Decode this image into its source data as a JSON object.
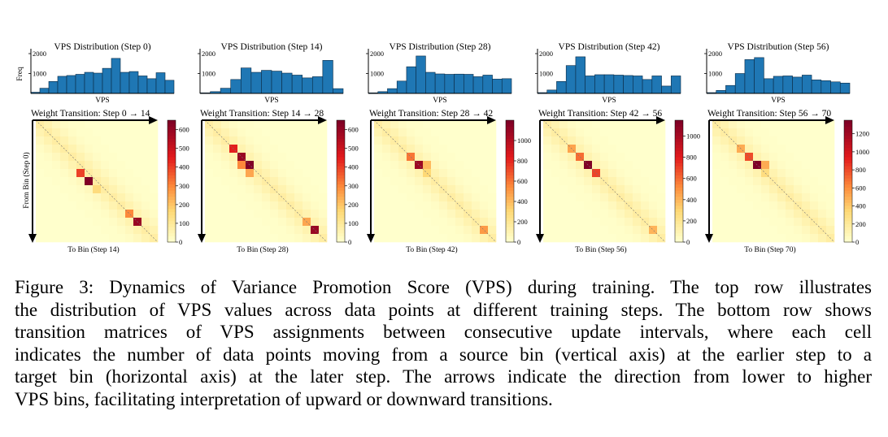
{
  "figure": {
    "colors": {
      "bar_fill": "#1f77b4",
      "bar_edge": "#0b2a44",
      "heat_low": "#ffffcc",
      "heat_mid": "#fd8d3c",
      "heat_high": "#800026",
      "diagonal": "#777777"
    },
    "hist_ylabel": "Freq",
    "heat_ylabel": "From Bin (Step 0)"
  },
  "chart_data": [
    {
      "type": "bar",
      "title": "VPS Distribution (Step 0)",
      "xlabel": "VPS",
      "ylabel": "Freq",
      "ylim": [
        0,
        2000
      ],
      "yticks": [
        1000,
        2000
      ],
      "values": [
        60,
        260,
        600,
        860,
        900,
        960,
        1060,
        1020,
        1260,
        1760,
        1060,
        1100,
        880,
        740,
        1040,
        660
      ]
    },
    {
      "type": "bar",
      "title": "VPS Distribution (Step 14)",
      "xlabel": "VPS",
      "ylabel": "",
      "ylim": [
        0,
        2000
      ],
      "yticks": [
        1000,
        2000
      ],
      "values": [
        30,
        90,
        260,
        700,
        1280,
        1060,
        1160,
        1120,
        1020,
        920,
        780,
        840,
        1660,
        240
      ]
    },
    {
      "type": "bar",
      "title": "VPS Distribution (Step 28)",
      "xlabel": "VPS",
      "ylabel": "",
      "ylim": [
        0,
        2000
      ],
      "yticks": [
        1000,
        2000
      ],
      "values": [
        30,
        90,
        240,
        620,
        1340,
        1880,
        1060,
        980,
        960,
        970,
        960,
        840,
        920,
        720,
        740
      ]
    },
    {
      "type": "bar",
      "title": "VPS Distribution (Step 42)",
      "xlabel": "VPS",
      "ylabel": "",
      "ylim": [
        0,
        2000
      ],
      "yticks": [
        1000,
        2000
      ],
      "values": [
        40,
        170,
        600,
        1400,
        1840,
        880,
        940,
        940,
        920,
        900,
        880,
        700,
        880,
        370,
        880
      ]
    },
    {
      "type": "bar",
      "title": "VPS Distribution (Step 56)",
      "xlabel": "VPS",
      "ylabel": "",
      "ylim": [
        0,
        2000
      ],
      "yticks": [
        1000,
        2000
      ],
      "values": [
        40,
        150,
        400,
        1000,
        1700,
        1800,
        740,
        860,
        880,
        820,
        920,
        680,
        640,
        580,
        520
      ]
    },
    {
      "type": "heatmap",
      "title": "Weight Transition: Step 0 → 14",
      "xlabel": "To Bin (Step 14)",
      "ylabel": "From Bin (Step 0)",
      "vmax": 650,
      "colorbar_ticks": [
        0,
        100,
        200,
        300,
        400,
        500,
        600
      ],
      "peaks": [
        {
          "row": 7,
          "col": 6,
          "value": 650
        },
        {
          "row": 6,
          "col": 5,
          "value": 400
        },
        {
          "row": 12,
          "col": 12,
          "value": 600
        },
        {
          "row": 11,
          "col": 11,
          "value": 300
        },
        {
          "row": 8,
          "col": 7,
          "value": 150
        }
      ]
    },
    {
      "type": "heatmap",
      "title": "Weight Transition: Step 14 → 28",
      "xlabel": "To Bin (Step 28)",
      "ylabel": "",
      "vmax": 650,
      "colorbar_ticks": [
        0,
        100,
        200,
        300,
        400,
        500,
        600
      ],
      "peaks": [
        {
          "row": 3,
          "col": 3,
          "value": 450
        },
        {
          "row": 4,
          "col": 4,
          "value": 600
        },
        {
          "row": 5,
          "col": 5,
          "value": 650
        },
        {
          "row": 5,
          "col": 4,
          "value": 300
        },
        {
          "row": 6,
          "col": 5,
          "value": 250
        },
        {
          "row": 13,
          "col": 13,
          "value": 600
        },
        {
          "row": 12,
          "col": 12,
          "value": 250
        }
      ]
    },
    {
      "type": "heatmap",
      "title": "Weight Transition: Step 28 → 42",
      "xlabel": "To Bin (Step 42)",
      "ylabel": "",
      "vmax": 1200,
      "colorbar_ticks": [
        0,
        200,
        400,
        600,
        800,
        1000
      ],
      "peaks": [
        {
          "row": 4,
          "col": 4,
          "value": 600
        },
        {
          "row": 5,
          "col": 5,
          "value": 1100
        },
        {
          "row": 5,
          "col": 6,
          "value": 400
        },
        {
          "row": 6,
          "col": 6,
          "value": 300
        },
        {
          "row": 13,
          "col": 13,
          "value": 500
        }
      ]
    },
    {
      "type": "heatmap",
      "title": "Weight Transition: Step 42 → 56",
      "xlabel": "To Bin (Step 56)",
      "ylabel": "",
      "vmax": 1150,
      "colorbar_ticks": [
        0,
        200,
        400,
        600,
        800,
        1000
      ],
      "peaks": [
        {
          "row": 3,
          "col": 3,
          "value": 450
        },
        {
          "row": 4,
          "col": 4,
          "value": 600
        },
        {
          "row": 5,
          "col": 5,
          "value": 1150
        },
        {
          "row": 6,
          "col": 6,
          "value": 700
        },
        {
          "row": 13,
          "col": 13,
          "value": 400
        }
      ]
    },
    {
      "type": "heatmap",
      "title": "Weight Transition: Step 56 → 70",
      "xlabel": "To Bin (Step 70)",
      "ylabel": "",
      "vmax": 1350,
      "colorbar_ticks": [
        0,
        200,
        400,
        600,
        800,
        1000,
        1200
      ],
      "peaks": [
        {
          "row": 3,
          "col": 3,
          "value": 500
        },
        {
          "row": 4,
          "col": 4,
          "value": 800
        },
        {
          "row": 5,
          "col": 5,
          "value": 1350
        },
        {
          "row": 5,
          "col": 6,
          "value": 500
        },
        {
          "row": 6,
          "col": 6,
          "value": 300
        }
      ]
    }
  ],
  "caption": {
    "lines": [
      "Figure 3: Dynamics of Variance Promotion Score (VPS) during training. The top row illustrates",
      "the distribution of VPS values across data points at different training steps. The bottom row shows",
      "transition matrices of VPS assignments between consecutive update intervals, where each cell",
      "indicates the number of data points moving from a source bin (vertical axis) at the earlier step to a",
      "target bin (horizontal axis) at the later step. The arrows indicate the direction from lower to higher",
      "VPS bins, facilitating interpretation of upward or downward transitions."
    ]
  }
}
